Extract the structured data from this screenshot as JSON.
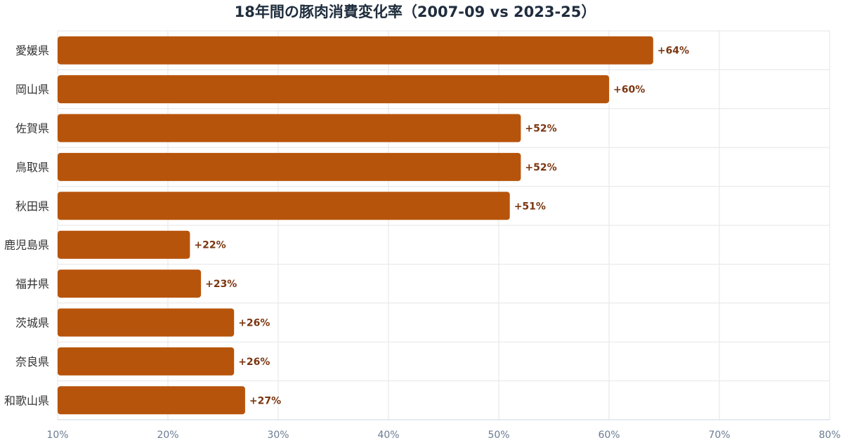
{
  "chart_data": {
    "type": "bar",
    "orientation": "horizontal",
    "title": "18年間の豚肉消費変化率（2007-09 vs 2023-25）",
    "xlabel": "",
    "ylabel": "",
    "categories": [
      "愛媛県",
      "岡山県",
      "佐賀県",
      "鳥取県",
      "秋田県",
      "鹿児島県",
      "福井県",
      "茨城県",
      "奈良県",
      "和歌山県"
    ],
    "values": [
      64,
      60,
      52,
      52,
      51,
      22,
      23,
      26,
      26,
      27
    ],
    "value_labels": [
      "+64%",
      "+60%",
      "+52%",
      "+52%",
      "+51%",
      "+22%",
      "+23%",
      "+26%",
      "+26%",
      "+27%"
    ],
    "xlim": [
      10,
      80
    ],
    "x_ticks": [
      10,
      20,
      30,
      40,
      50,
      60,
      70,
      80
    ],
    "x_tick_labels": [
      "10%",
      "20%",
      "30%",
      "40%",
      "50%",
      "60%",
      "70%",
      "80%"
    ],
    "grid": true,
    "legend": "none",
    "colors": {
      "bar": "#b7540b",
      "value_label": "#7a3610",
      "title": "#1f2d3d",
      "category_label": "#333333",
      "tick_label": "#6b7c93",
      "grid": "#e6e6e6"
    }
  }
}
